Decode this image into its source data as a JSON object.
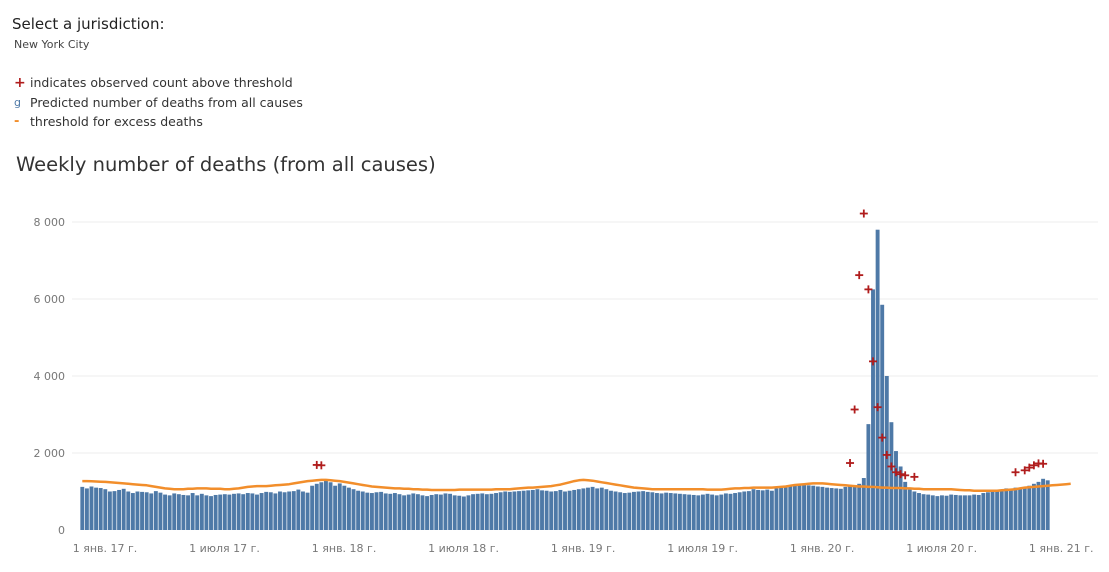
{
  "filter": {
    "title": "Select a jurisdiction:",
    "value": "New York City"
  },
  "legend": {
    "items": [
      {
        "icon": "plus-marker-icon",
        "symbol": "+",
        "label": "indicates observed count above threshold"
      },
      {
        "icon": "bar-marker-icon",
        "symbol": "g",
        "label": "Predicted number of deaths from all causes"
      },
      {
        "icon": "dash-marker-icon",
        "symbol": "-",
        "label": "threshold for excess deaths"
      }
    ]
  },
  "colors": {
    "bars": "#4e79a7",
    "threshold": "#f28e2b",
    "marker": "#b01c1c",
    "grid": "#eeeeee"
  },
  "chart_data": {
    "type": "bar",
    "title": "Weekly number of deaths (from all causes)",
    "xlabel": "",
    "ylabel": "",
    "ylim": [
      0,
      8500
    ],
    "y_ticks": [
      {
        "value": 0,
        "label": "0"
      },
      {
        "value": 2000,
        "label": "2 000"
      },
      {
        "value": 4000,
        "label": "4 000"
      },
      {
        "value": 6000,
        "label": "6 000"
      },
      {
        "value": 8000,
        "label": "8 000"
      }
    ],
    "x_ticks": [
      {
        "week": 0,
        "label": "1 янв. 17 г."
      },
      {
        "week": 26,
        "label": "1 июля 17 г."
      },
      {
        "week": 52,
        "label": "1 янв. 18 г."
      },
      {
        "week": 78,
        "label": "1 июля 18 г."
      },
      {
        "week": 104,
        "label": "1 янв. 19 г."
      },
      {
        "week": 130,
        "label": "1 июля 19 г."
      },
      {
        "week": 156,
        "label": "1 янв. 20 г."
      },
      {
        "week": 182,
        "label": "1 июля 20 г."
      },
      {
        "week": 208,
        "label": "1 янв. 21 г."
      }
    ],
    "grid": true,
    "series": [
      {
        "name": "Predicted number of deaths from all causes",
        "kind": "bar",
        "values": [
          1120,
          1080,
          1130,
          1100,
          1090,
          1060,
          1000,
          1010,
          1040,
          1070,
          1000,
          960,
          1000,
          990,
          980,
          950,
          1010,
          970,
          920,
          900,
          950,
          930,
          910,
          900,
          960,
          900,
          940,
          900,
          880,
          910,
          920,
          930,
          920,
          940,
          950,
          930,
          960,
          950,
          920,
          960,
          990,
          980,
          950,
          1000,
          980,
          1000,
          1010,
          1050,
          1000,
          970,
          1150,
          1200,
          1240,
          1300,
          1240,
          1150,
          1210,
          1150,
          1100,
          1060,
          1020,
          1000,
          970,
          960,
          980,
          990,
          950,
          940,
          960,
          930,
          900,
          920,
          950,
          930,
          900,
          880,
          910,
          930,
          920,
          950,
          940,
          900,
          890,
          870,
          900,
          930,
          940,
          950,
          930,
          940,
          960,
          980,
          1000,
          990,
          1000,
          1010,
          1020,
          1030,
          1040,
          1060,
          1030,
          1020,
          1000,
          1010,
          1040,
          1000,
          1020,
          1040,
          1060,
          1080,
          1100,
          1120,
          1080,
          1100,
          1060,
          1020,
          1000,
          980,
          960,
          970,
          990,
          1000,
          1010,
          990,
          980,
          960,
          950,
          970,
          960,
          950,
          940,
          930,
          920,
          910,
          900,
          920,
          940,
          920,
          900,
          920,
          950,
          940,
          960,
          980,
          1000,
          1010,
          1060,
          1040,
          1030,
          1050,
          1020,
          1080,
          1120,
          1140,
          1130,
          1150,
          1180,
          1170,
          1160,
          1150,
          1130,
          1120,
          1100,
          1090,
          1080,
          1070,
          1120,
          1170,
          1150,
          1200,
          1350,
          2750,
          6250,
          7800,
          5850,
          4000,
          2800,
          2050,
          1650,
          1250,
          1050,
          1000,
          960,
          930,
          920,
          900,
          880,
          900,
          890,
          920,
          910,
          900,
          900,
          900,
          920,
          910,
          960,
          980,
          1000,
          1020,
          1050,
          1080,
          1060,
          1100,
          1100,
          1110,
          1150,
          1200,
          1250,
          1330,
          1290
        ]
      },
      {
        "name": "threshold for excess deaths",
        "kind": "line",
        "values": [
          1270,
          1270,
          1265,
          1260,
          1255,
          1250,
          1240,
          1230,
          1220,
          1210,
          1200,
          1190,
          1180,
          1170,
          1160,
          1140,
          1120,
          1100,
          1080,
          1070,
          1060,
          1060,
          1060,
          1070,
          1070,
          1080,
          1080,
          1080,
          1070,
          1070,
          1070,
          1060,
          1060,
          1070,
          1080,
          1100,
          1120,
          1130,
          1140,
          1140,
          1140,
          1150,
          1160,
          1170,
          1180,
          1190,
          1210,
          1230,
          1250,
          1270,
          1280,
          1290,
          1300,
          1300,
          1290,
          1280,
          1270,
          1250,
          1230,
          1210,
          1190,
          1170,
          1150,
          1130,
          1120,
          1110,
          1100,
          1090,
          1080,
          1080,
          1070,
          1070,
          1060,
          1060,
          1050,
          1050,
          1040,
          1040,
          1040,
          1040,
          1040,
          1040,
          1050,
          1050,
          1050,
          1050,
          1050,
          1050,
          1050,
          1050,
          1060,
          1060,
          1060,
          1060,
          1070,
          1080,
          1090,
          1100,
          1100,
          1110,
          1120,
          1130,
          1140,
          1160,
          1180,
          1210,
          1240,
          1270,
          1290,
          1300,
          1290,
          1280,
          1260,
          1240,
          1220,
          1200,
          1180,
          1160,
          1140,
          1120,
          1100,
          1090,
          1080,
          1070,
          1060,
          1060,
          1060,
          1060,
          1060,
          1060,
          1060,
          1060,
          1060,
          1060,
          1060,
          1060,
          1050,
          1050,
          1050,
          1050,
          1060,
          1070,
          1080,
          1080,
          1090,
          1090,
          1100,
          1100,
          1100,
          1100,
          1100,
          1110,
          1120,
          1130,
          1150,
          1170,
          1180,
          1190,
          1200,
          1210,
          1210,
          1210,
          1200,
          1190,
          1180,
          1170,
          1160,
          1150,
          1140,
          1130,
          1130,
          1120,
          1120,
          1110,
          1100,
          1100,
          1090,
          1090,
          1090,
          1080,
          1080,
          1070,
          1070,
          1060,
          1060,
          1060,
          1060,
          1060,
          1060,
          1060,
          1050,
          1040,
          1030,
          1030,
          1020,
          1020,
          1020,
          1020,
          1020,
          1020,
          1030,
          1040,
          1050,
          1060,
          1080,
          1100,
          1110,
          1120,
          1130,
          1140,
          1150,
          1160,
          1170,
          1180,
          1190,
          1200
        ]
      },
      {
        "name": "indicates observed count above threshold",
        "kind": "marker",
        "points": [
          {
            "week": 51,
            "value": 1690
          },
          {
            "week": 52,
            "value": 1680
          },
          {
            "week": 167,
            "value": 1740
          },
          {
            "week": 168,
            "value": 3130
          },
          {
            "week": 169,
            "value": 6620
          },
          {
            "week": 170,
            "value": 8220
          },
          {
            "week": 171,
            "value": 6250
          },
          {
            "week": 172,
            "value": 4380
          },
          {
            "week": 173,
            "value": 3190
          },
          {
            "week": 174,
            "value": 2400
          },
          {
            "week": 175,
            "value": 1950
          },
          {
            "week": 176,
            "value": 1650
          },
          {
            "week": 177,
            "value": 1500
          },
          {
            "week": 178,
            "value": 1450
          },
          {
            "week": 179,
            "value": 1420
          },
          {
            "week": 181,
            "value": 1380
          },
          {
            "week": 203,
            "value": 1500
          },
          {
            "week": 205,
            "value": 1550
          },
          {
            "week": 206,
            "value": 1620
          },
          {
            "week": 207,
            "value": 1680
          },
          {
            "week": 208,
            "value": 1730
          },
          {
            "week": 209,
            "value": 1720
          }
        ]
      }
    ]
  }
}
